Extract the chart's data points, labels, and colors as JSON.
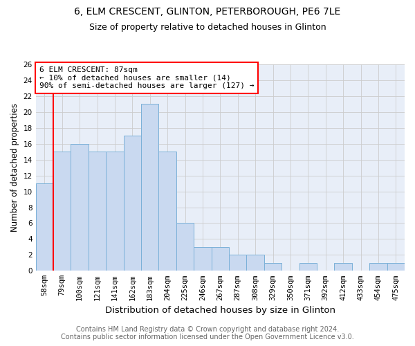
{
  "title1": "6, ELM CRESCENT, GLINTON, PETERBOROUGH, PE6 7LE",
  "title2": "Size of property relative to detached houses in Glinton",
  "xlabel": "Distribution of detached houses by size in Glinton",
  "ylabel": "Number of detached properties",
  "footnote": "Contains HM Land Registry data © Crown copyright and database right 2024.\nContains public sector information licensed under the Open Government Licence v3.0.",
  "categories": [
    "58sqm",
    "79sqm",
    "100sqm",
    "121sqm",
    "141sqm",
    "162sqm",
    "183sqm",
    "204sqm",
    "225sqm",
    "246sqm",
    "267sqm",
    "287sqm",
    "308sqm",
    "329sqm",
    "350sqm",
    "371sqm",
    "392sqm",
    "412sqm",
    "433sqm",
    "454sqm",
    "475sqm"
  ],
  "values": [
    11,
    15,
    16,
    15,
    15,
    17,
    21,
    15,
    6,
    3,
    3,
    2,
    2,
    1,
    0,
    1,
    0,
    1,
    0,
    1,
    1
  ],
  "bar_color": "#c9d9f0",
  "bar_edge_color": "#7ab0d8",
  "annotation_text": "6 ELM CRESCENT: 87sqm\n← 10% of detached houses are smaller (14)\n90% of semi-detached houses are larger (127) →",
  "annotation_box_color": "white",
  "annotation_border_color": "red",
  "red_line_color": "red",
  "red_line_bin": 1,
  "ylim": [
    0,
    26
  ],
  "yticks": [
    0,
    2,
    4,
    6,
    8,
    10,
    12,
    14,
    16,
    18,
    20,
    22,
    24,
    26
  ],
  "grid_color": "#cccccc",
  "background_color": "#e8eef8",
  "title1_fontsize": 10,
  "title2_fontsize": 9,
  "xlabel_fontsize": 9.5,
  "ylabel_fontsize": 8.5,
  "tick_fontsize": 7.5,
  "footnote_fontsize": 7,
  "annotation_fontsize": 8
}
